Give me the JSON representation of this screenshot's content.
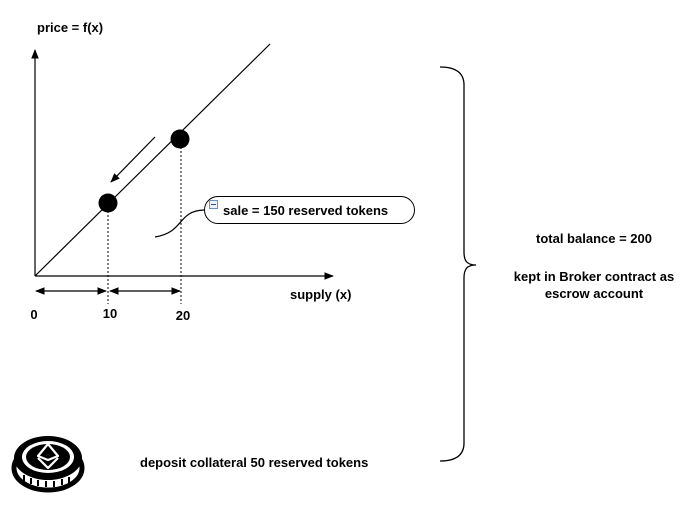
{
  "axes": {
    "y_label": "price = f(x)",
    "x_label": "supply (x)",
    "tick_0": "0",
    "tick_10": "10",
    "tick_20": "20"
  },
  "callout": {
    "text": "sale = 150 reserved tokens"
  },
  "right_panel": {
    "total": "total balance = 200",
    "escrow_line1": "kept in Broker contract as",
    "escrow_line2": "escrow account"
  },
  "bottom": {
    "deposit": "deposit collateral 50 reserved tokens"
  },
  "icons": {
    "token": "token-coin-icon",
    "collapse": "minus-icon"
  },
  "colors": {
    "stroke": "#000000",
    "background": "#ffffff"
  }
}
